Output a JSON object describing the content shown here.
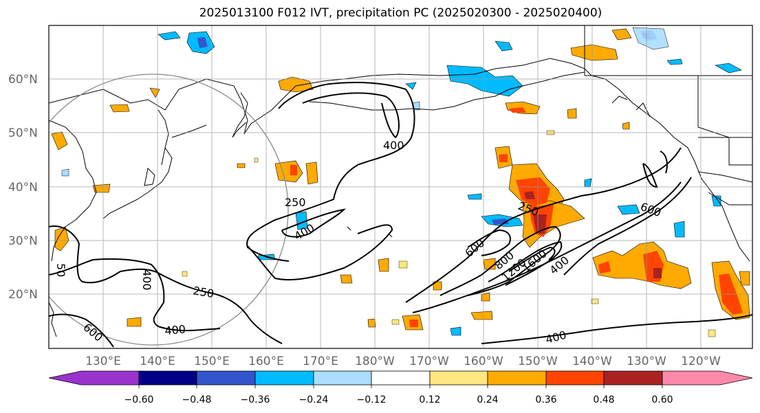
{
  "title": "2025013100 F012 IVT, precipitation PC (2025020300 - 2025020400)",
  "lat_labels": [
    "60°N",
    "50°N",
    "40°N",
    "30°N",
    "20°N"
  ],
  "lon_labels": [
    "130°E",
    "140°E",
    "150°E",
    "160°E",
    "170°E",
    "180°W",
    "170°W",
    "160°W",
    "150°W",
    "140°W",
    "130°W",
    "120°W"
  ],
  "colorbar": {
    "ticks": [
      "−0.60",
      "−0.48",
      "−0.36",
      "−0.24",
      "−0.12",
      "0.12",
      "0.24",
      "0.36",
      "0.48",
      "0.60"
    ],
    "colors": [
      "#9933cc",
      "#000088",
      "#3355cc",
      "#00bbff",
      "#aaddff",
      "#ffffff",
      "#ffe680",
      "#ffaa00",
      "#ff4400",
      "#aa2222",
      "#ff88aa"
    ]
  },
  "contour_labels": [
    "400",
    "250",
    "400",
    "250",
    "600",
    "600",
    "800",
    "1200",
    "1600",
    "400",
    "400",
    "400",
    "250",
    "400",
    "600",
    "600",
    "50"
  ]
}
